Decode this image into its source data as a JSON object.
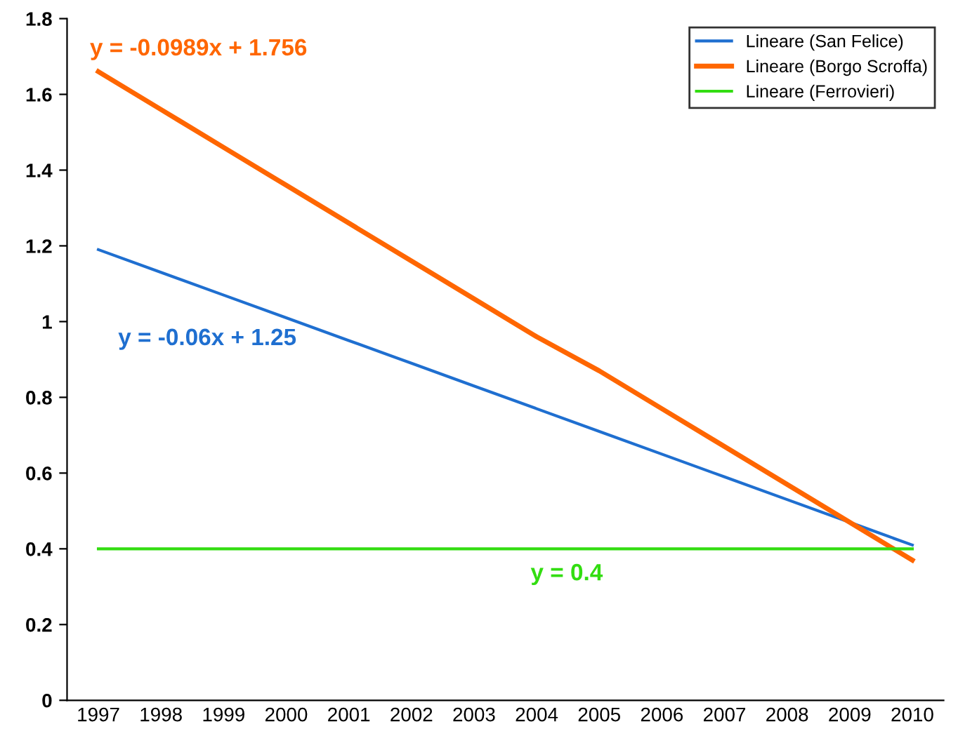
{
  "chart_data": {
    "type": "line",
    "categories": [
      "1997",
      "1998",
      "1999",
      "2000",
      "2001",
      "2002",
      "2003",
      "2004",
      "2005",
      "2006",
      "2007",
      "2008",
      "2009",
      "2010"
    ],
    "series": [
      {
        "name": "Lineare (San Felice)",
        "color": "#1f6fd0",
        "values": [
          1.19,
          1.13,
          1.07,
          1.01,
          0.95,
          0.89,
          0.83,
          0.77,
          0.71,
          0.65,
          0.59,
          0.53,
          0.47,
          0.41
        ]
      },
      {
        "name": "Lineare (Borgo Scroffa)",
        "color": "#ff6600",
        "values": [
          1.66,
          1.56,
          1.46,
          1.36,
          1.26,
          1.16,
          1.06,
          0.96,
          0.87,
          0.77,
          0.67,
          0.57,
          0.47,
          0.37
        ]
      },
      {
        "name": "Lineare (Ferrovieri)",
        "color": "#33dd11",
        "values": [
          0.4,
          0.4,
          0.4,
          0.4,
          0.4,
          0.4,
          0.4,
          0.4,
          0.4,
          0.4,
          0.4,
          0.4,
          0.4,
          0.4
        ]
      }
    ],
    "annotations": [
      "y = -0.06x + 1.25",
      "y = -0.0989x + 1.756",
      "y = 0.4"
    ],
    "ylim": [
      0,
      1.8
    ],
    "yticks": [
      0,
      0.2,
      0.4,
      0.6,
      0.8,
      1,
      1.2,
      1.4,
      1.6,
      1.8
    ],
    "grid": false,
    "legend": "top right",
    "marker": "none",
    "line_style": "solid"
  }
}
